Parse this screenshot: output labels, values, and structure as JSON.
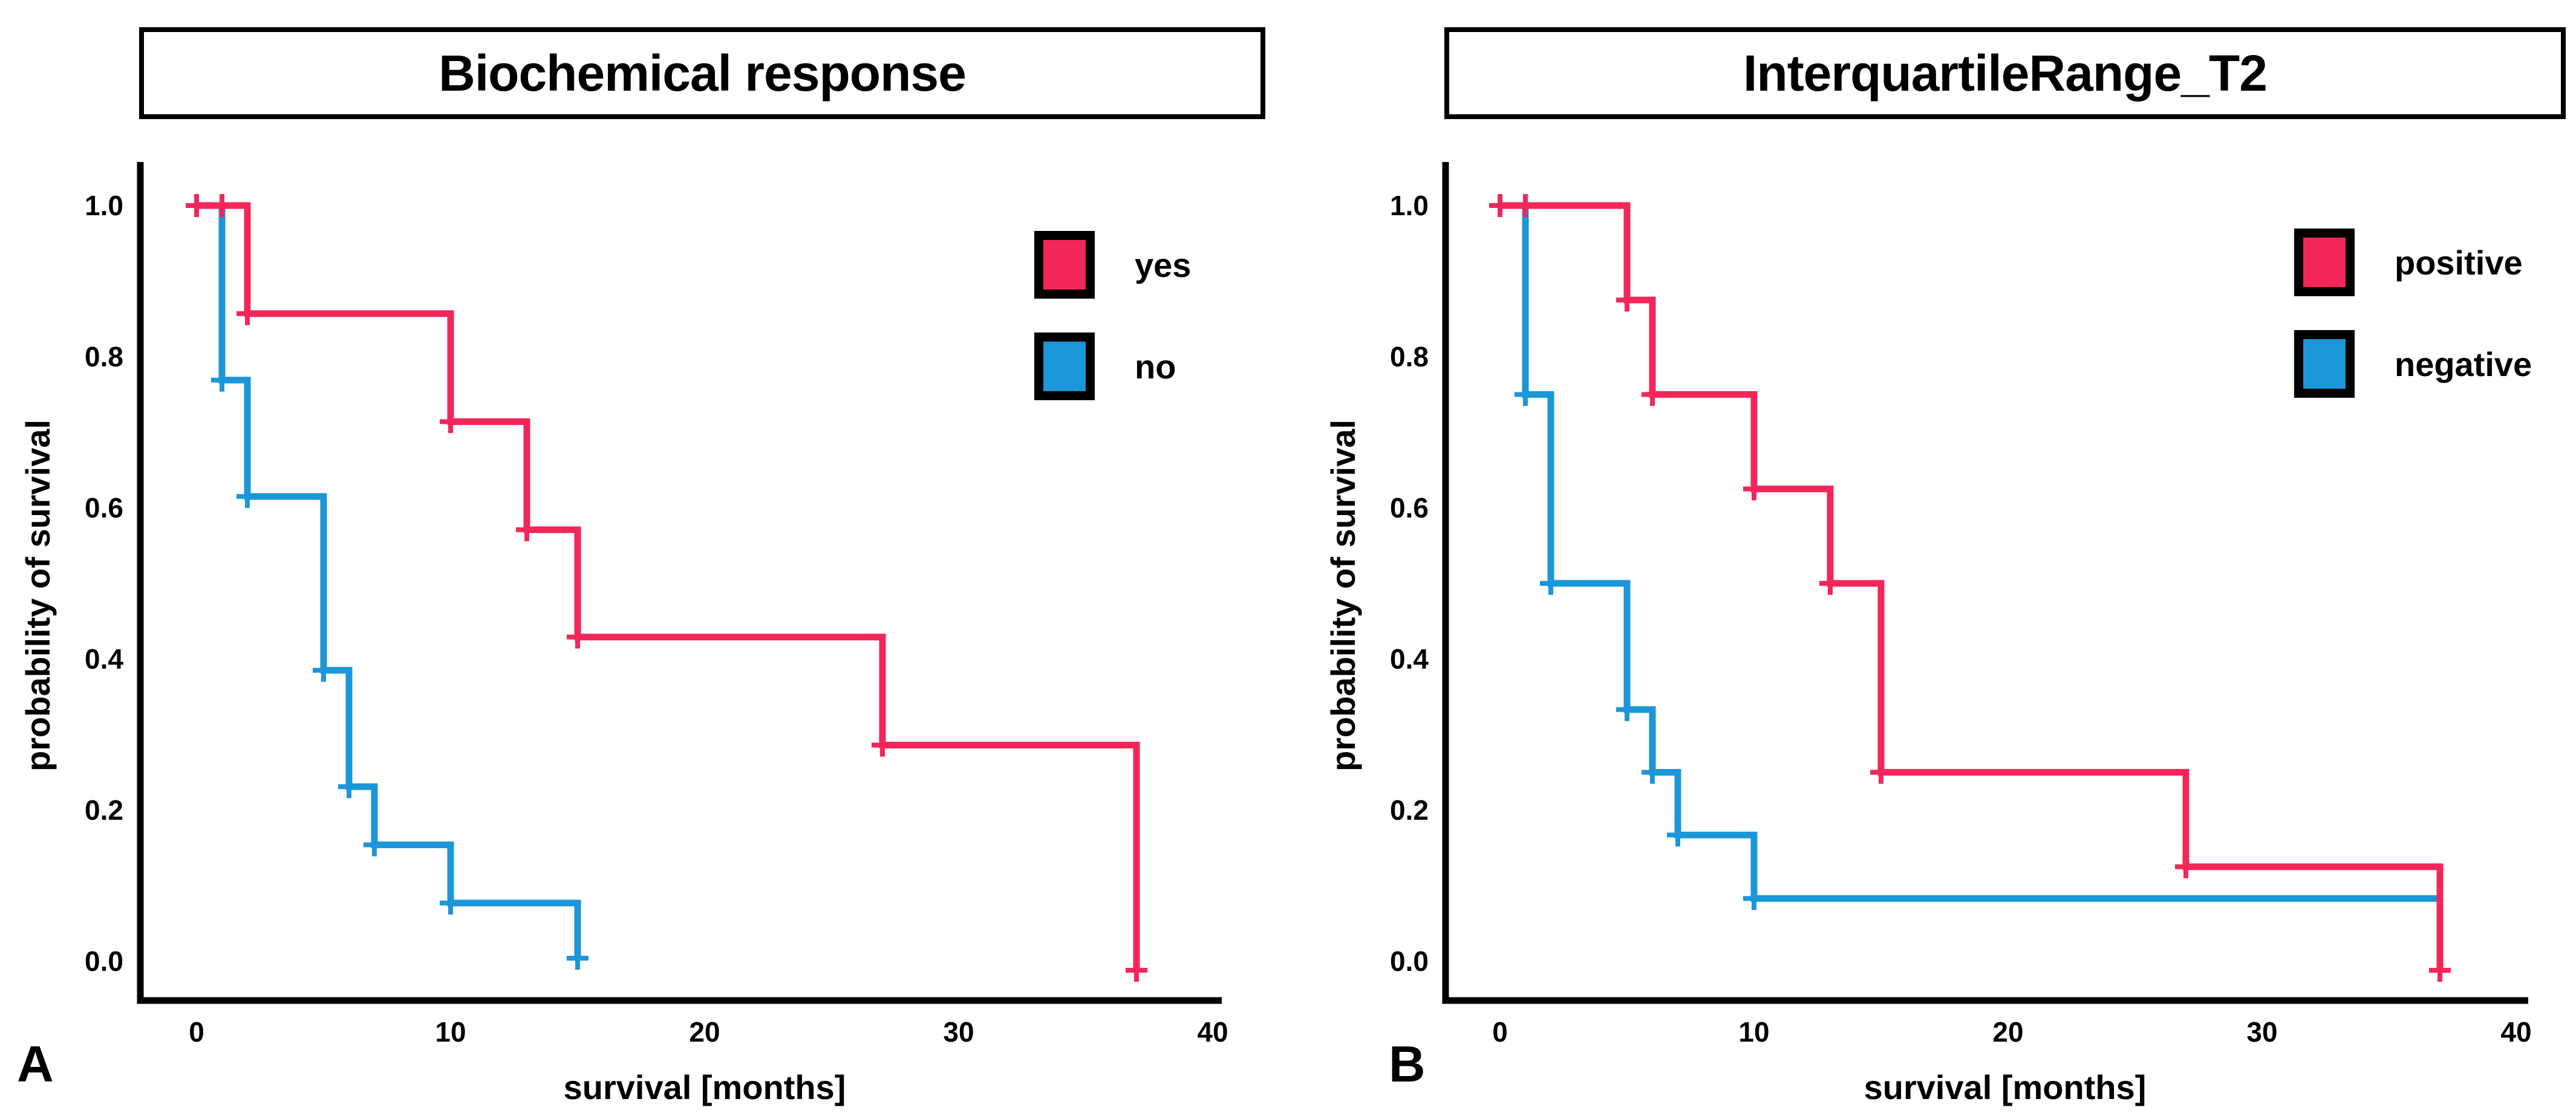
{
  "figure": {
    "background": "#ffffff",
    "ink": "#000000",
    "accent_red": "#f3265a",
    "accent_blue": "#1b96d9",
    "panels": [
      {
        "corner_label": "A"
      },
      {
        "corner_label": "B"
      }
    ]
  },
  "chart_data": [
    {
      "type": "line",
      "subtype": "kaplan_meier_step",
      "title": "Biochemical response",
      "xlabel": "survival [months]",
      "ylabel": "probability of survival",
      "x_ticks": [
        0,
        10,
        20,
        30,
        40
      ],
      "y_ticks": [
        1.0,
        0.8,
        0.6,
        0.4,
        0.2,
        0.0
      ],
      "xlim": [
        -2.2,
        40.4
      ],
      "ylim": [
        -0.05,
        1.06
      ],
      "grid": false,
      "legend_position": "upper right",
      "series": [
        {
          "name": "yes",
          "color": "#f3265a",
          "steps": [
            [
              0,
              1
            ],
            [
              2,
              1
            ],
            [
              2,
              0.857
            ],
            [
              10,
              0.857
            ],
            [
              10,
              0.714
            ],
            [
              13,
              0.714
            ],
            [
              13,
              0.571
            ],
            [
              15,
              0.571
            ],
            [
              15,
              0.429
            ],
            [
              27,
              0.429
            ],
            [
              27,
              0.286
            ],
            [
              37,
              0.286
            ],
            [
              37,
              -0.012
            ]
          ],
          "censor_marks": [
            [
              0,
              1
            ],
            [
              1,
              1
            ],
            [
              2,
              0.857
            ],
            [
              10,
              0.714
            ],
            [
              13,
              0.571
            ],
            [
              15,
              0.429
            ],
            [
              27,
              0.286
            ],
            [
              37,
              -0.012
            ]
          ]
        },
        {
          "name": "no",
          "color": "#1b96d9",
          "steps": [
            [
              0,
              1
            ],
            [
              1,
              1
            ],
            [
              1,
              0.769
            ],
            [
              2,
              0.769
            ],
            [
              2,
              0.615
            ],
            [
              5,
              0.615
            ],
            [
              5,
              0.385
            ],
            [
              6,
              0.385
            ],
            [
              6,
              0.231
            ],
            [
              7,
              0.231
            ],
            [
              7,
              0.154
            ],
            [
              10,
              0.154
            ],
            [
              10,
              0.077
            ],
            [
              15,
              0.077
            ],
            [
              15,
              0.004
            ]
          ],
          "censor_marks": [
            [
              1,
              0.769
            ],
            [
              2,
              0.615
            ],
            [
              5,
              0.385
            ],
            [
              6,
              0.231
            ],
            [
              7,
              0.154
            ],
            [
              10,
              0.077
            ],
            [
              15,
              0.004
            ]
          ]
        }
      ]
    },
    {
      "type": "line",
      "subtype": "kaplan_meier_step",
      "title": "InterquartileRange_T2",
      "xlabel": "survival [months]",
      "ylabel": "probability of survival",
      "x_ticks": [
        0,
        10,
        20,
        30,
        40
      ],
      "y_ticks": [
        1.0,
        0.8,
        0.6,
        0.4,
        0.2,
        0.0
      ],
      "xlim": [
        -2.2,
        40.4
      ],
      "ylim": [
        -0.05,
        1.06
      ],
      "grid": false,
      "legend_position": "upper right",
      "series": [
        {
          "name": "positive",
          "color": "#f3265a",
          "steps": [
            [
              0,
              1
            ],
            [
              5,
              1
            ],
            [
              5,
              0.875
            ],
            [
              6,
              0.875
            ],
            [
              6,
              0.75
            ],
            [
              10,
              0.75
            ],
            [
              10,
              0.625
            ],
            [
              13,
              0.625
            ],
            [
              13,
              0.5
            ],
            [
              15,
              0.5
            ],
            [
              15,
              0.25
            ],
            [
              27,
              0.25
            ],
            [
              27,
              0.125
            ],
            [
              37,
              0.125
            ],
            [
              37,
              -0.012
            ]
          ],
          "censor_marks": [
            [
              0,
              1
            ],
            [
              1,
              1
            ],
            [
              5,
              0.875
            ],
            [
              6,
              0.75
            ],
            [
              10,
              0.625
            ],
            [
              13,
              0.5
            ],
            [
              15,
              0.25
            ],
            [
              27,
              0.125
            ],
            [
              37,
              -0.012
            ]
          ]
        },
        {
          "name": "negative",
          "color": "#1b96d9",
          "steps": [
            [
              0,
              1
            ],
            [
              1,
              1
            ],
            [
              1,
              0.75
            ],
            [
              2,
              0.75
            ],
            [
              2,
              0.5
            ],
            [
              5,
              0.5
            ],
            [
              5,
              0.333
            ],
            [
              6,
              0.333
            ],
            [
              6,
              0.25
            ],
            [
              7,
              0.25
            ],
            [
              7,
              0.167
            ],
            [
              10,
              0.167
            ],
            [
              10,
              0.083
            ],
            [
              37,
              0.083
            ]
          ],
          "censor_marks": [
            [
              1,
              0.75
            ],
            [
              2,
              0.5
            ],
            [
              5,
              0.333
            ],
            [
              6,
              0.25
            ],
            [
              7,
              0.167
            ],
            [
              10,
              0.083
            ]
          ]
        }
      ]
    }
  ]
}
